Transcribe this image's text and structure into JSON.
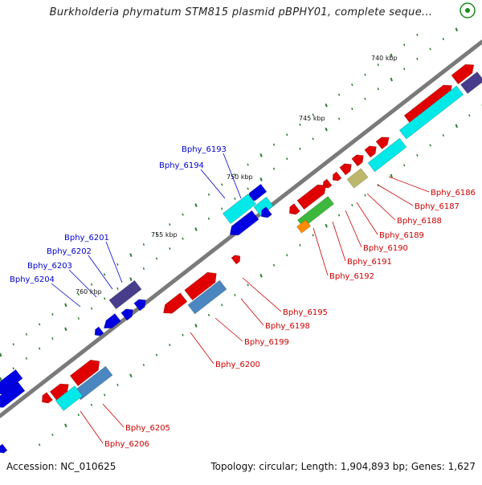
{
  "title": "Burkholderia phymatum STM815 plasmid pBPHY01, complete seque...",
  "footer": {
    "accession": "Accession: NC_010625",
    "summary": "Topology: circular; Length: 1,904,893 bp; Genes: 1,627"
  },
  "icons": {
    "zoom": "zoom-circle-icon"
  },
  "colors": {
    "backbone": "#7a7a7a",
    "forward_gene": "#e00000",
    "reverse_gene": "#0000e0",
    "cds_cyan": "#00e8e8",
    "cds_olive": "#bdb76b",
    "cds_green": "#3cb83c",
    "cds_orange": "#ff8c00",
    "cds_steel": "#4a86c0",
    "cds_purple": "#483d8b",
    "tick_major": "#2e7d32",
    "label_blue": "#0000cc",
    "label_red": "#cc0000"
  },
  "scale_ticks": [
    {
      "label": "740 kbp"
    },
    {
      "label": "745 kbp"
    },
    {
      "label": "750 kbp"
    },
    {
      "label": "755 kbp"
    },
    {
      "label": "760 kbp"
    }
  ],
  "genes": {
    "inner_labels": [
      "Bphy_6186",
      "Bphy_6187",
      "Bphy_6188",
      "Bphy_6189",
      "Bphy_6190",
      "Bphy_6191",
      "Bphy_6192",
      "Bphy_6195",
      "Bphy_6198",
      "Bphy_6199",
      "Bphy_6200",
      "Bphy_6205",
      "Bphy_6206"
    ],
    "outer_labels": [
      "Bphy_6193",
      "Bphy_6194",
      "Bphy_6201",
      "Bphy_6202",
      "Bphy_6203",
      "Bphy_6204"
    ]
  }
}
